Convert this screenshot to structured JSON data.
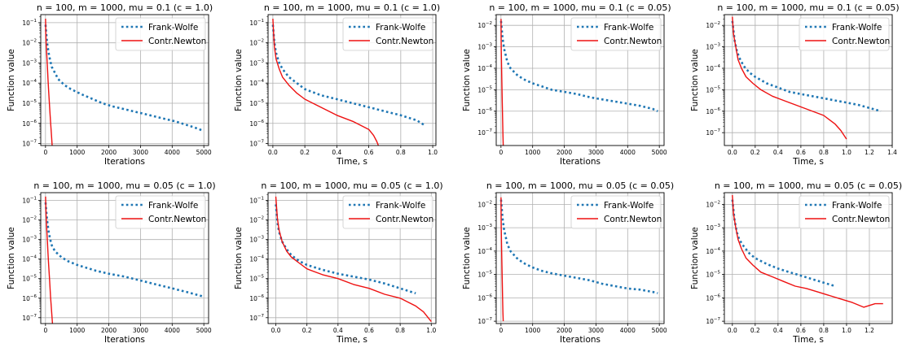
{
  "series_styles": {
    "Frank-Wolfe": {
      "color": "#1f77b4",
      "style": "dotted"
    },
    "Contr.Newton": {
      "color": "#ee1111",
      "style": "solid"
    }
  },
  "chart_data": [
    {
      "type": "line",
      "title": "n = 100, m = 1000, mu = 0.1 (c = 1.0)",
      "xlabel": "Iterations",
      "ylabel": "Function value",
      "yscale": "log",
      "xlim": [
        -150,
        5150
      ],
      "ylim_exp": [
        -7.1,
        -0.6
      ],
      "xticks": [
        0,
        1000,
        2000,
        3000,
        4000,
        5000
      ],
      "xtick_labels": [
        "0",
        "1000",
        "2000",
        "3000",
        "4000",
        "5000"
      ],
      "yticks_exp": [
        -7,
        -6,
        -5,
        -4,
        -3,
        -2,
        -1
      ],
      "grid": true,
      "legend": "top-right",
      "series": [
        {
          "name": "Frank-Wolfe",
          "x": [
            1,
            50,
            100,
            150,
            200,
            300,
            400,
            600,
            800,
            1000,
            1200,
            1500,
            1800,
            2100,
            2500,
            2900,
            3300,
            3700,
            4100,
            4400,
            4700,
            4950
          ],
          "y_log10": [
            -1.1,
            -2.0,
            -2.5,
            -2.9,
            -3.2,
            -3.5,
            -3.8,
            -4.1,
            -4.3,
            -4.45,
            -4.6,
            -4.8,
            -5.0,
            -5.15,
            -5.3,
            -5.45,
            -5.6,
            -5.75,
            -5.9,
            -6.05,
            -6.2,
            -6.35
          ]
        },
        {
          "name": "Contr.Newton",
          "x": [
            1,
            10,
            20,
            40,
            60,
            80,
            100,
            130,
            160,
            190,
            210
          ],
          "y_log10": [
            -0.8,
            -1.5,
            -2.0,
            -2.6,
            -3.2,
            -3.8,
            -4.4,
            -5.2,
            -5.9,
            -6.6,
            -7.1
          ]
        }
      ]
    },
    {
      "type": "line",
      "title": "n = 100, m = 1000, mu = 0.1 (c = 1.0)",
      "xlabel": "Time, s",
      "ylabel": "Function value",
      "yscale": "log",
      "xlim": [
        -0.03,
        1.02
      ],
      "ylim_exp": [
        -7.1,
        -0.6
      ],
      "xticks": [
        0.0,
        0.2,
        0.4,
        0.6,
        0.8,
        1.0
      ],
      "xtick_labels": [
        "0.0",
        "0.2",
        "0.4",
        "0.6",
        "0.8",
        "1.0"
      ],
      "yticks_exp": [
        -7,
        -6,
        -5,
        -4,
        -3,
        -2,
        -1
      ],
      "grid": true,
      "legend": "top-right",
      "series": [
        {
          "name": "Frank-Wolfe",
          "x": [
            0.0,
            0.01,
            0.02,
            0.04,
            0.06,
            0.1,
            0.15,
            0.2,
            0.3,
            0.4,
            0.5,
            0.6,
            0.7,
            0.8,
            0.9,
            0.95
          ],
          "y_log10": [
            -1.1,
            -2.0,
            -2.5,
            -3.0,
            -3.3,
            -3.7,
            -4.0,
            -4.3,
            -4.6,
            -4.8,
            -5.0,
            -5.2,
            -5.4,
            -5.6,
            -5.85,
            -6.1
          ]
        },
        {
          "name": "Contr.Newton",
          "x": [
            0.0,
            0.005,
            0.01,
            0.02,
            0.04,
            0.06,
            0.1,
            0.15,
            0.2,
            0.3,
            0.4,
            0.5,
            0.55,
            0.6,
            0.63,
            0.65,
            0.66
          ],
          "y_log10": [
            -0.8,
            -1.6,
            -2.2,
            -2.8,
            -3.3,
            -3.7,
            -4.1,
            -4.5,
            -4.8,
            -5.2,
            -5.6,
            -5.9,
            -6.1,
            -6.3,
            -6.6,
            -6.9,
            -7.1
          ]
        }
      ]
    },
    {
      "type": "line",
      "title": "n = 100, m = 1000, mu = 0.1 (c = 0.05)",
      "xlabel": "Iterations",
      "ylabel": "Function value",
      "yscale": "log",
      "xlim": [
        -150,
        5150
      ],
      "ylim_exp": [
        -7.6,
        -1.5
      ],
      "xticks": [
        0,
        1000,
        2000,
        3000,
        4000,
        5000
      ],
      "xtick_labels": [
        "0",
        "1000",
        "2000",
        "3000",
        "4000",
        "5000"
      ],
      "yticks_exp": [
        -7,
        -6,
        -5,
        -4,
        -3,
        -2
      ],
      "grid": true,
      "legend": "top-right",
      "series": [
        {
          "name": "Frank-Wolfe",
          "x": [
            1,
            50,
            100,
            150,
            200,
            300,
            500,
            700,
            1000,
            1300,
            1600,
            2000,
            2400,
            2800,
            3200,
            3600,
            4000,
            4400,
            4800,
            4950
          ],
          "y_log10": [
            -1.8,
            -2.6,
            -3.1,
            -3.4,
            -3.7,
            -4.0,
            -4.3,
            -4.5,
            -4.7,
            -4.85,
            -5.0,
            -5.1,
            -5.2,
            -5.35,
            -5.45,
            -5.55,
            -5.65,
            -5.75,
            -5.9,
            -6.0
          ]
        },
        {
          "name": "Contr.Newton",
          "x": [
            1,
            5,
            10,
            20,
            30,
            40,
            50,
            60,
            70
          ],
          "y_log10": [
            -1.7,
            -2.5,
            -3.2,
            -4.0,
            -4.8,
            -5.6,
            -6.3,
            -7.0,
            -7.6
          ]
        }
      ]
    },
    {
      "type": "line",
      "title": "n = 100, m = 1000, mu = 0.1 (c = 0.05)",
      "xlabel": "Time, s",
      "ylabel": "Function value",
      "yscale": "log",
      "xlim": [
        -0.07,
        1.4
      ],
      "ylim_exp": [
        -7.6,
        -1.5
      ],
      "xticks": [
        0.0,
        0.2,
        0.4,
        0.6,
        0.8,
        1.0,
        1.2,
        1.4
      ],
      "xtick_labels": [
        "0.0",
        "0.2",
        "0.4",
        "0.6",
        "0.8",
        "1.0",
        "1.2",
        "1.4"
      ],
      "yticks_exp": [
        -7,
        -6,
        -5,
        -4,
        -3,
        -2
      ],
      "grid": true,
      "legend": "top-right",
      "series": [
        {
          "name": "Frank-Wolfe",
          "x": [
            0.0,
            0.02,
            0.04,
            0.06,
            0.1,
            0.15,
            0.2,
            0.3,
            0.4,
            0.5,
            0.6,
            0.7,
            0.8,
            0.9,
            1.0,
            1.1,
            1.2,
            1.3
          ],
          "y_log10": [
            -1.8,
            -2.7,
            -3.2,
            -3.5,
            -3.9,
            -4.2,
            -4.4,
            -4.7,
            -4.9,
            -5.1,
            -5.2,
            -5.3,
            -5.4,
            -5.5,
            -5.6,
            -5.7,
            -5.85,
            -6.0
          ]
        },
        {
          "name": "Contr.Newton",
          "x": [
            0.0,
            0.01,
            0.03,
            0.05,
            0.08,
            0.12,
            0.18,
            0.25,
            0.35,
            0.45,
            0.55,
            0.65,
            0.75,
            0.8,
            0.85,
            0.9,
            0.95,
            1.0
          ],
          "y_log10": [
            -1.6,
            -2.4,
            -3.0,
            -3.6,
            -4.0,
            -4.4,
            -4.7,
            -5.0,
            -5.3,
            -5.5,
            -5.7,
            -5.9,
            -6.1,
            -6.2,
            -6.4,
            -6.6,
            -6.9,
            -7.3
          ]
        }
      ]
    },
    {
      "type": "line",
      "title": "n = 100, m = 1000, mu = 0.05 (c = 1.0)",
      "xlabel": "Iterations",
      "ylabel": "Function value",
      "yscale": "log",
      "xlim": [
        -150,
        5150
      ],
      "ylim_exp": [
        -7.3,
        -0.6
      ],
      "xticks": [
        0,
        1000,
        2000,
        3000,
        4000,
        5000
      ],
      "xtick_labels": [
        "0",
        "1000",
        "2000",
        "3000",
        "4000",
        "5000"
      ],
      "yticks_exp": [
        -7,
        -6,
        -5,
        -4,
        -3,
        -2,
        -1
      ],
      "grid": true,
      "legend": "top-right",
      "series": [
        {
          "name": "Frank-Wolfe",
          "x": [
            1,
            50,
            100,
            150,
            200,
            300,
            500,
            700,
            1000,
            1300,
            1600,
            2000,
            2500,
            3000,
            3500,
            4000,
            4500,
            4950
          ],
          "y_log10": [
            -1.1,
            -2.0,
            -2.6,
            -3.0,
            -3.3,
            -3.6,
            -3.9,
            -4.1,
            -4.3,
            -4.45,
            -4.6,
            -4.75,
            -4.9,
            -5.1,
            -5.3,
            -5.5,
            -5.7,
            -5.9
          ]
        },
        {
          "name": "Contr.Newton",
          "x": [
            1,
            20,
            40,
            60,
            80,
            100,
            130,
            160,
            190,
            220
          ],
          "y_log10": [
            -0.8,
            -1.8,
            -2.5,
            -3.1,
            -3.7,
            -4.3,
            -5.1,
            -5.9,
            -6.6,
            -7.3
          ]
        }
      ]
    },
    {
      "type": "line",
      "title": "n = 100, m = 1000, mu = 0.05 (c = 1.0)",
      "xlabel": "Time, s",
      "ylabel": "Function value",
      "yscale": "log",
      "xlim": [
        -0.05,
        1.03
      ],
      "ylim_exp": [
        -7.3,
        -0.6
      ],
      "xticks": [
        0.0,
        0.2,
        0.4,
        0.6,
        0.8,
        1.0
      ],
      "xtick_labels": [
        "0.0",
        "0.2",
        "0.4",
        "0.6",
        "0.8",
        "1.0"
      ],
      "yticks_exp": [
        -7,
        -6,
        -5,
        -4,
        -3,
        -2,
        -1
      ],
      "grid": true,
      "legend": "top-right",
      "series": [
        {
          "name": "Frank-Wolfe",
          "x": [
            0.0,
            0.01,
            0.02,
            0.04,
            0.07,
            0.1,
            0.15,
            0.2,
            0.3,
            0.4,
            0.5,
            0.6,
            0.7,
            0.8,
            0.9
          ],
          "y_log10": [
            -1.2,
            -2.1,
            -2.6,
            -3.1,
            -3.5,
            -3.8,
            -4.1,
            -4.3,
            -4.55,
            -4.75,
            -4.9,
            -5.05,
            -5.25,
            -5.5,
            -5.75
          ]
        },
        {
          "name": "Contr.Newton",
          "x": [
            0.0,
            0.01,
            0.02,
            0.04,
            0.07,
            0.1,
            0.15,
            0.2,
            0.3,
            0.4,
            0.5,
            0.6,
            0.7,
            0.8,
            0.85,
            0.9,
            0.95,
            0.98,
            1.0
          ],
          "y_log10": [
            -0.8,
            -1.9,
            -2.5,
            -3.1,
            -3.6,
            -3.9,
            -4.2,
            -4.5,
            -4.8,
            -5.0,
            -5.3,
            -5.5,
            -5.8,
            -6.0,
            -6.2,
            -6.4,
            -6.7,
            -7.0,
            -7.2
          ]
        }
      ]
    },
    {
      "type": "line",
      "title": "n = 100, m = 1000, mu = 0.05 (c = 0.05)",
      "xlabel": "Iterations",
      "ylabel": "Function value",
      "yscale": "log",
      "xlim": [
        -150,
        5150
      ],
      "ylim_exp": [
        -7.1,
        -1.5
      ],
      "xticks": [
        0,
        1000,
        2000,
        3000,
        4000,
        5000
      ],
      "xtick_labels": [
        "0",
        "1000",
        "2000",
        "3000",
        "4000",
        "5000"
      ],
      "yticks_exp": [
        -7,
        -6,
        -5,
        -4,
        -3,
        -2
      ],
      "grid": true,
      "legend": "top-right",
      "series": [
        {
          "name": "Frank-Wolfe",
          "x": [
            1,
            50,
            100,
            150,
            200,
            300,
            500,
            700,
            1000,
            1300,
            1600,
            2000,
            2400,
            2800,
            3200,
            3600,
            4000,
            4400,
            4800,
            4950
          ],
          "y_log10": [
            -1.8,
            -2.6,
            -3.1,
            -3.4,
            -3.7,
            -4.0,
            -4.3,
            -4.5,
            -4.7,
            -4.85,
            -4.95,
            -5.05,
            -5.15,
            -5.25,
            -5.4,
            -5.5,
            -5.6,
            -5.65,
            -5.75,
            -5.8
          ]
        },
        {
          "name": "Contr.Newton",
          "x": [
            1,
            5,
            10,
            20,
            30,
            40,
            50,
            60,
            70
          ],
          "y_log10": [
            -1.7,
            -2.5,
            -3.1,
            -3.9,
            -4.6,
            -5.3,
            -6.0,
            -6.6,
            -7.0
          ]
        }
      ]
    },
    {
      "type": "line",
      "title": "n = 100, m = 1000, mu = 0.05 (c = 0.05)",
      "xlabel": "Time, s",
      "ylabel": "Function value",
      "yscale": "log",
      "xlim": [
        -0.07,
        1.4
      ],
      "ylim_exp": [
        -7.1,
        -1.5
      ],
      "xticks": [
        0.0,
        0.2,
        0.4,
        0.6,
        0.8,
        1.0,
        1.2
      ],
      "xtick_labels": [
        "0.0",
        "0.2",
        "0.4",
        "0.6",
        "0.8",
        "1.0",
        "1.2"
      ],
      "yticks_exp": [
        -7,
        -6,
        -5,
        -4,
        -3,
        -2
      ],
      "grid": true,
      "legend": "top-right",
      "series": [
        {
          "name": "Frank-Wolfe",
          "x": [
            0.0,
            0.02,
            0.04,
            0.06,
            0.1,
            0.15,
            0.2,
            0.3,
            0.4,
            0.5,
            0.6,
            0.7,
            0.8,
            0.9
          ],
          "y_log10": [
            -1.8,
            -2.7,
            -3.2,
            -3.5,
            -3.8,
            -4.1,
            -4.3,
            -4.55,
            -4.75,
            -4.9,
            -5.05,
            -5.2,
            -5.35,
            -5.5
          ]
        },
        {
          "name": "Contr.Newton",
          "x": [
            0.0,
            0.01,
            0.03,
            0.05,
            0.08,
            0.12,
            0.18,
            0.25,
            0.35,
            0.45,
            0.55,
            0.65,
            0.75,
            0.85,
            0.95,
            1.05,
            1.15,
            1.25,
            1.32
          ],
          "y_log10": [
            -1.6,
            -2.4,
            -3.0,
            -3.5,
            -3.9,
            -4.3,
            -4.6,
            -4.9,
            -5.1,
            -5.3,
            -5.5,
            -5.6,
            -5.75,
            -5.9,
            -6.05,
            -6.2,
            -6.4,
            -6.25,
            -6.25
          ]
        }
      ]
    }
  ]
}
